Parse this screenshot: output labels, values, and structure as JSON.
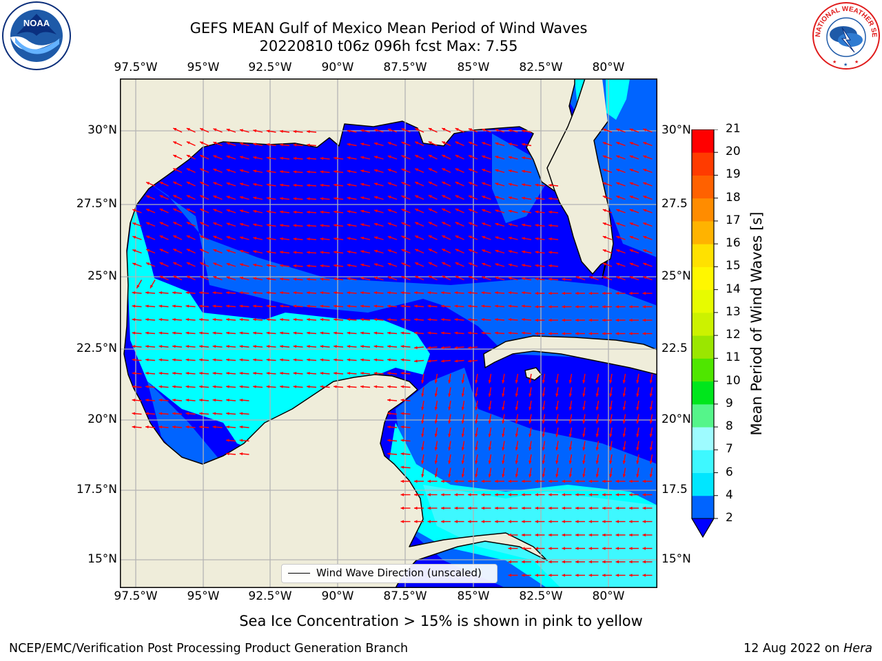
{
  "title": {
    "line1": "GEFS MEAN Gulf of Mexico Mean Period of Wind Waves",
    "line2": "20220810 t06z 096h fcst   Max: 7.55"
  },
  "logos": {
    "left": "noaa-logo",
    "right": "nws-logo",
    "left_text": "NOAA",
    "right_text": "NATIONAL WEATHER SERVICE"
  },
  "map": {
    "lon_labels": [
      "97.5°W",
      "95°W",
      "92.5°W",
      "90°W",
      "87.5°W",
      "85°W",
      "82.5°W",
      "80°W"
    ],
    "lat_labels_left": [
      "30°N",
      "27.5°N",
      "25°N",
      "22.5°N",
      "20°N",
      "17.5°N",
      "15°N"
    ],
    "lat_labels_right": [
      "30°N",
      "27.5",
      "25°N",
      "22.5",
      "20°N",
      "17.5",
      "15°N"
    ],
    "land_color": "#efedda",
    "grid_color": "#b4b4b4",
    "arrow_color": "#ff0000"
  },
  "legend": {
    "label": "Wind Wave Direction (unscaled)"
  },
  "colorbar": {
    "label": "Mean Period of Wind Waves [s]",
    "ticks": [
      "2",
      "4",
      "6",
      "7",
      "8",
      "9",
      "10",
      "11",
      "12",
      "13",
      "14",
      "15",
      "16",
      "17",
      "18",
      "19",
      "20",
      "21"
    ],
    "colors": [
      "#0064ff",
      "#00e6ff",
      "#3ef8ff",
      "#9efbff",
      "#55f58a",
      "#00e61c",
      "#4fe600",
      "#9be600",
      "#ccf200",
      "#e7fb00",
      "#fff700",
      "#ffe100",
      "#ffb300",
      "#ff8c00",
      "#ff6100",
      "#ff3b00",
      "#ff0000"
    ],
    "under_color": "#0000ff"
  },
  "footnote": "Sea Ice Concentration > 15% is shown in pink to yellow",
  "credit_left": "NCEP/EMC/Verification Post Processing Product Generation Branch",
  "credit_right": {
    "date": "12 Aug 2022 on ",
    "host": "Hera"
  }
}
